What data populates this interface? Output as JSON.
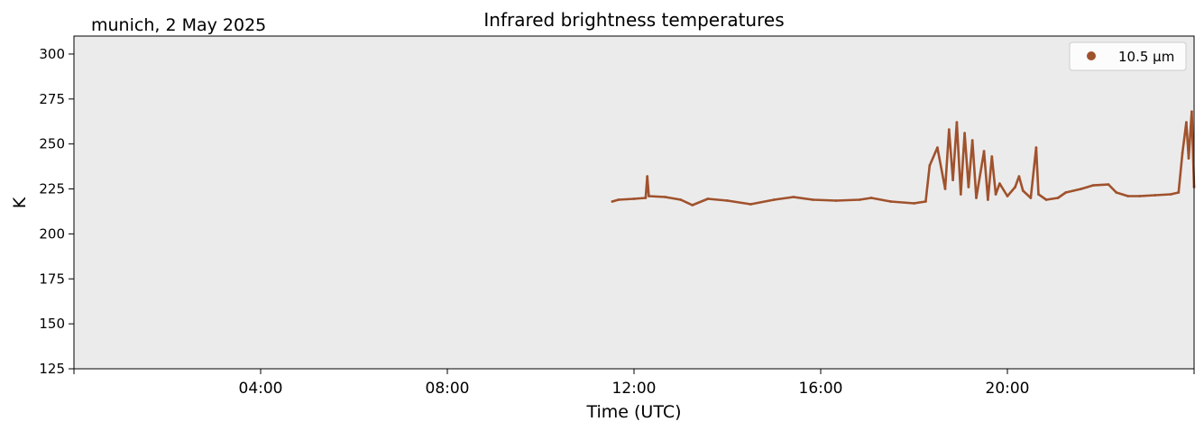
{
  "header": {
    "location_date": "munich, 2 May 2025",
    "title": "Infrared brightness temperatures"
  },
  "chart_data": {
    "type": "line",
    "title": "Infrared brightness temperatures",
    "subtitle": "munich, 2 May 2025",
    "xlabel": "Time (UTC)",
    "ylabel": "K",
    "xlim": [
      "00:00",
      "24:00"
    ],
    "ylim": [
      125,
      310
    ],
    "x_ticks": [
      "04:00",
      "08:00",
      "12:00",
      "16:00",
      "20:00"
    ],
    "y_ticks": [
      125,
      150,
      175,
      200,
      225,
      250,
      275,
      300
    ],
    "grid": false,
    "background": "#ebebeb",
    "legend_position": "top-right",
    "series": [
      {
        "name": "10.5 µm",
        "color": "#a0522d",
        "marker": "dot",
        "points": [
          [
            "11:32",
            218
          ],
          [
            "11:40",
            219
          ],
          [
            "12:00",
            219.5
          ],
          [
            "12:15",
            220
          ],
          [
            "12:17",
            232
          ],
          [
            "12:19",
            221
          ],
          [
            "12:40",
            220.5
          ],
          [
            "13:00",
            219
          ],
          [
            "13:15",
            216
          ],
          [
            "13:35",
            219.5
          ],
          [
            "14:00",
            218.5
          ],
          [
            "14:30",
            216.5
          ],
          [
            "15:00",
            219
          ],
          [
            "15:25",
            220.5
          ],
          [
            "15:50",
            219
          ],
          [
            "16:20",
            218.5
          ],
          [
            "16:50",
            219
          ],
          [
            "17:05",
            220
          ],
          [
            "17:30",
            218
          ],
          [
            "18:00",
            217
          ],
          [
            "18:15",
            218
          ],
          [
            "18:20",
            238
          ],
          [
            "18:30",
            248
          ],
          [
            "18:40",
            225
          ],
          [
            "18:45",
            258
          ],
          [
            "18:50",
            230
          ],
          [
            "18:55",
            262
          ],
          [
            "19:00",
            222
          ],
          [
            "19:05",
            256
          ],
          [
            "19:10",
            226
          ],
          [
            "19:15",
            252
          ],
          [
            "19:20",
            220
          ],
          [
            "19:30",
            246
          ],
          [
            "19:35",
            219
          ],
          [
            "19:40",
            243
          ],
          [
            "19:45",
            222
          ],
          [
            "19:50",
            228
          ],
          [
            "20:00",
            221
          ],
          [
            "20:10",
            226
          ],
          [
            "20:15",
            232
          ],
          [
            "20:20",
            224
          ],
          [
            "20:30",
            220
          ],
          [
            "20:37",
            248
          ],
          [
            "20:40",
            222
          ],
          [
            "20:50",
            219
          ],
          [
            "21:05",
            220
          ],
          [
            "21:15",
            223
          ],
          [
            "21:35",
            225
          ],
          [
            "21:50",
            227
          ],
          [
            "22:10",
            227.5
          ],
          [
            "22:20",
            223
          ],
          [
            "22:35",
            221
          ],
          [
            "22:50",
            221
          ],
          [
            "23:10",
            221.5
          ],
          [
            "23:30",
            222
          ],
          [
            "23:40",
            223
          ],
          [
            "23:45",
            245
          ],
          [
            "23:50",
            262
          ],
          [
            "23:53",
            242
          ],
          [
            "23:57",
            268
          ],
          [
            "24:00",
            226
          ]
        ]
      }
    ]
  }
}
